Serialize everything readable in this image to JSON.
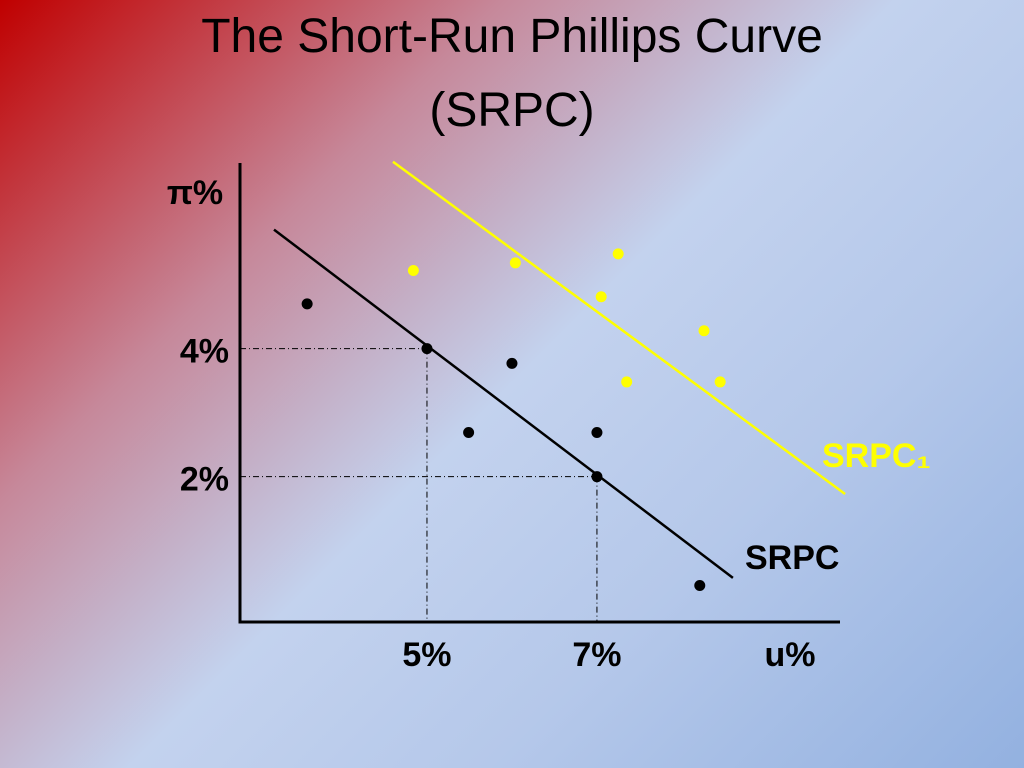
{
  "chart_data": {
    "type": "scatter",
    "title": "The Short-Run Phillips Curve (SRPC)",
    "xlabel": "u%",
    "ylabel": "π%",
    "xlim": [
      2.8,
      9.86
    ],
    "ylim": [
      -0.27,
      6.9
    ],
    "xticks": [
      {
        "value": 5,
        "label": "5%"
      },
      {
        "value": 7,
        "label": "7%"
      }
    ],
    "yticks": [
      {
        "value": 2,
        "label": "2%"
      },
      {
        "value": 4,
        "label": "4%"
      }
    ],
    "grid": false,
    "guides": [
      {
        "x": 5,
        "y": 4
      },
      {
        "x": 7,
        "y": 2
      }
    ],
    "series": [
      {
        "name": "SRPC",
        "color": "#000000",
        "x": [
          3.59,
          5,
          6.0,
          5.49,
          7,
          7,
          8.21
        ],
        "y": [
          4.7,
          4,
          3.77,
          2.69,
          2.69,
          2,
          0.3
        ],
        "line": {
          "x": [
            3.2,
            8.6
          ],
          "y": [
            5.86,
            0.42
          ]
        }
      },
      {
        "name": "SRPC₁",
        "color": "#ffff00",
        "x": [
          4.84,
          6.04,
          7.25,
          7.05,
          8.26,
          7.35,
          8.45
        ],
        "y": [
          5.22,
          5.34,
          5.48,
          4.81,
          4.28,
          3.48,
          3.48
        ],
        "line": {
          "x": [
            4.6,
            9.92
          ],
          "y": [
            6.92,
            1.73
          ]
        }
      }
    ]
  }
}
